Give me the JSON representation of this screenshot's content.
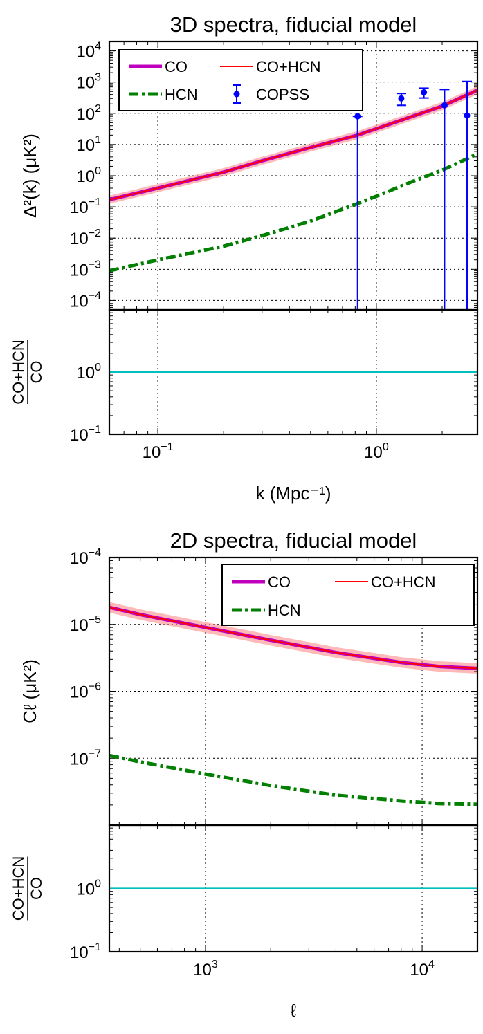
{
  "chart_data": [
    {
      "type": "line",
      "title": "3D spectra, fiducial model",
      "xlabel": "k (Mpc⁻¹)",
      "xscale": "log",
      "xlim": [
        0.06,
        2.9
      ],
      "xticks": [
        {
          "value": 0.1,
          "base": "10",
          "exp": "−1"
        },
        {
          "value": 1,
          "base": "10",
          "exp": "0"
        }
      ],
      "main": {
        "ylabel": "Δ²(k) (μK²)",
        "yscale": "log",
        "ylim": [
          5e-05,
          20000
        ],
        "yticks": [
          {
            "value": 0.0001,
            "base": "10",
            "exp": "−4"
          },
          {
            "value": 0.001,
            "base": "10",
            "exp": "−3"
          },
          {
            "value": 0.01,
            "base": "10",
            "exp": "−2"
          },
          {
            "value": 0.1,
            "base": "10",
            "exp": "−1"
          },
          {
            "value": 1,
            "base": "10",
            "exp": "0"
          },
          {
            "value": 10,
            "base": "10",
            "exp": "1"
          },
          {
            "value": 100,
            "base": "10",
            "exp": "2"
          },
          {
            "value": 1000,
            "base": "10",
            "exp": "3"
          },
          {
            "value": 10000,
            "base": "10",
            "exp": "4"
          }
        ],
        "grid": true,
        "series": [
          {
            "name": "CO",
            "style": "solid-thick",
            "color": "#bf00bf",
            "x": [
              0.06,
              0.1,
              0.2,
              0.3,
              0.5,
              0.8,
              1.0,
              1.5,
              2.0,
              2.9
            ],
            "y": [
              0.17,
              0.4,
              1.3,
              3.0,
              8.0,
              19,
              32,
              85,
              170,
              550
            ]
          },
          {
            "name": "CO+HCN",
            "style": "solid-band",
            "color": "#ff0000",
            "band_factor": 1.35,
            "x": [
              0.06,
              0.1,
              0.2,
              0.3,
              0.5,
              0.8,
              1.0,
              1.5,
              2.0,
              2.9
            ],
            "y": [
              0.17,
              0.4,
              1.3,
              3.0,
              8.0,
              19,
              32,
              85,
              170,
              550
            ]
          },
          {
            "name": "HCN",
            "style": "dashdot",
            "color": "#007f00",
            "x": [
              0.06,
              0.1,
              0.2,
              0.3,
              0.5,
              0.8,
              1.0,
              1.5,
              2.0,
              2.9
            ],
            "y": [
              0.0009,
              0.002,
              0.0055,
              0.012,
              0.035,
              0.12,
              0.22,
              0.7,
              1.5,
              5.0
            ]
          }
        ],
        "errorbars": {
          "name": "COPSS",
          "color": "#0000ff",
          "points": [
            {
              "x": 0.82,
              "y": 80,
              "lo": 1e-05,
              "hi": 80
            },
            {
              "x": 1.3,
              "y": 300,
              "lo": 180,
              "hi": 430
            },
            {
              "x": 1.65,
              "y": 470,
              "lo": 310,
              "hi": 640
            },
            {
              "x": 2.05,
              "y": 180,
              "lo": 1e-05,
              "hi": 580
            },
            {
              "x": 2.6,
              "y": 85,
              "lo": 1e-05,
              "hi": 1050
            }
          ]
        },
        "legend": {
          "placement": "upper-left",
          "entries": [
            "CO",
            "CO+HCN",
            "HCN",
            "COPSS"
          ]
        }
      },
      "ratio": {
        "ylabel_num": "CO+HCN",
        "ylabel_den": "CO",
        "yscale": "log",
        "ylim": [
          0.1,
          10
        ],
        "yticks": [
          {
            "value": 0.1,
            "base": "10",
            "exp": "−1"
          },
          {
            "value": 1,
            "base": "10",
            "exp": "0"
          }
        ],
        "value": 1.0,
        "color": "#00bfbf"
      }
    },
    {
      "type": "line",
      "title": "2D spectra, fiducial model",
      "xlabel": "ℓ",
      "xscale": "log",
      "xlim": [
        360,
        18000
      ],
      "xticks": [
        {
          "value": 1000,
          "base": "10",
          "exp": "3"
        },
        {
          "value": 10000,
          "base": "10",
          "exp": "4"
        }
      ],
      "main": {
        "ylabel": "Cℓ (μK²)",
        "yscale": "log",
        "ylim": [
          1e-08,
          0.0001
        ],
        "yticks": [
          {
            "value": 1e-07,
            "base": "10",
            "exp": "−7"
          },
          {
            "value": 1e-06,
            "base": "10",
            "exp": "−6"
          },
          {
            "value": 1e-05,
            "base": "10",
            "exp": "−5"
          },
          {
            "value": 0.0001,
            "base": "10",
            "exp": "−4"
          }
        ],
        "grid": true,
        "series": [
          {
            "name": "CO",
            "style": "solid-thick",
            "color": "#bf00bf",
            "x": [
              360,
              500,
              1000,
              2000,
              4000,
              8000,
              12000,
              18000
            ],
            "y": [
              1.8e-05,
              1.4e-05,
              9e-06,
              5.8e-06,
              3.8e-06,
              2.7e-06,
              2.35e-06,
              2.2e-06
            ]
          },
          {
            "name": "CO+HCN",
            "style": "solid-band",
            "color": "#ff0000",
            "band_factor": 1.2,
            "x": [
              360,
              500,
              1000,
              2000,
              4000,
              8000,
              12000,
              18000
            ],
            "y": [
              1.8e-05,
              1.4e-05,
              9e-06,
              5.8e-06,
              3.8e-06,
              2.7e-06,
              2.35e-06,
              2.2e-06
            ]
          },
          {
            "name": "HCN",
            "style": "dashdot",
            "color": "#007f00",
            "x": [
              360,
              500,
              1000,
              2000,
              4000,
              8000,
              12000,
              18000
            ],
            "y": [
              1.1e-07,
              8.8e-08,
              5.8e-08,
              3.9e-08,
              2.8e-08,
              2.3e-08,
              2.1e-08,
              2.05e-08
            ]
          }
        ],
        "legend": {
          "placement": "upper-right",
          "entries": [
            "CO",
            "CO+HCN",
            "HCN"
          ]
        }
      },
      "ratio": {
        "ylabel_num": "CO+HCN",
        "ylabel_den": "CO",
        "yscale": "log",
        "ylim": [
          0.1,
          10
        ],
        "yticks": [
          {
            "value": 0.1,
            "base": "10",
            "exp": "−1"
          },
          {
            "value": 1,
            "base": "10",
            "exp": "0"
          }
        ],
        "value": 1.0,
        "color": "#00bfbf"
      }
    }
  ]
}
